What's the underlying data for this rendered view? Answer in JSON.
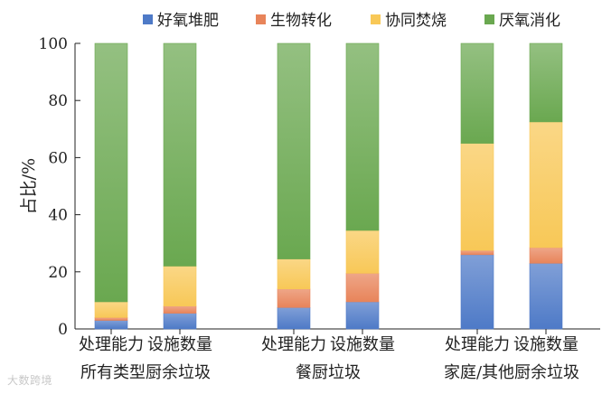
{
  "chart_data": {
    "type": "bar",
    "stacked": true,
    "ylabel": "占比/%",
    "ylim": [
      0,
      100
    ],
    "yticks": [
      0,
      20,
      40,
      60,
      80,
      100
    ],
    "legend_position": "top",
    "categories": [
      "处理能力",
      "设施数量",
      "处理能力",
      "设施数量",
      "处理能力",
      "设施数量"
    ],
    "groups": [
      {
        "label": "所有类型厨余垃圾",
        "bars": [
          0,
          1
        ]
      },
      {
        "label": "餐厨垃圾",
        "bars": [
          2,
          3
        ]
      },
      {
        "label": "家庭/其他厨余垃圾",
        "bars": [
          4,
          5
        ]
      }
    ],
    "series": [
      {
        "name": "好氧堆肥",
        "color": "#4e7ac7",
        "values": [
          3,
          5.5,
          7.5,
          9.5,
          26,
          23
        ]
      },
      {
        "name": "生物转化",
        "color": "#e8845a",
        "values": [
          1,
          2.5,
          6.5,
          10,
          1.5,
          5.5
        ]
      },
      {
        "name": "协同焚烧",
        "color": "#f8c857",
        "values": [
          5.5,
          14,
          10.5,
          15,
          37.5,
          44
        ]
      },
      {
        "name": "厌氧消化",
        "color": "#6aa850",
        "values": [
          90.5,
          78,
          75.5,
          65.5,
          35,
          27.5
        ]
      }
    ]
  },
  "watermark": "大数跨境"
}
